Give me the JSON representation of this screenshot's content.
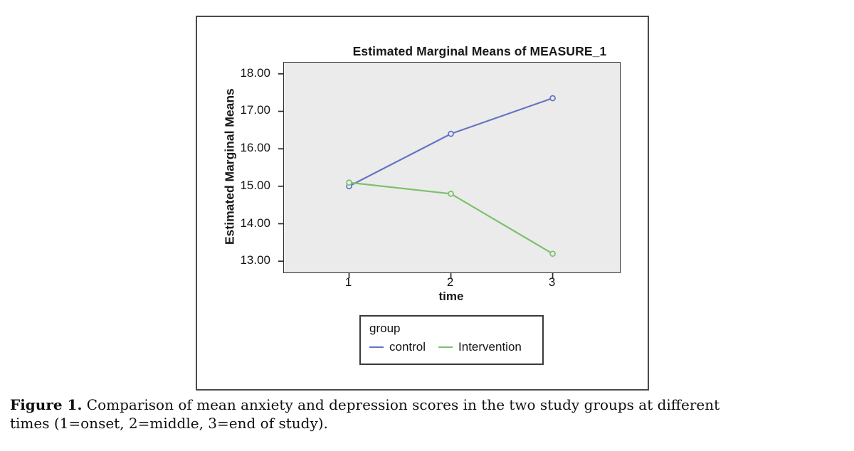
{
  "figure": {
    "caption_label": "Figure 1.",
    "caption_line1": "Comparison of mean anxiety and depression scores in the two study groups at different",
    "caption_line2": "times (1=onset, 2=middle, 3=end of study)."
  },
  "chart_data": {
    "type": "line",
    "title": "Estimated Marginal Means of MEASURE_1",
    "xlabel": "time",
    "ylabel": "Estimated Marginal Means",
    "x": [
      1,
      2,
      3
    ],
    "x_ticks": [
      {
        "value": 1,
        "label": "1"
      },
      {
        "value": 2,
        "label": "2"
      },
      {
        "value": 3,
        "label": "3"
      }
    ],
    "y_ticks": [
      {
        "value": 13,
        "label": "13.00"
      },
      {
        "value": 14,
        "label": "14.00"
      },
      {
        "value": 15,
        "label": "15.00"
      },
      {
        "value": 16,
        "label": "16.00"
      },
      {
        "value": 17,
        "label": "17.00"
      },
      {
        "value": 18,
        "label": "18.00"
      }
    ],
    "xlim": [
      0.36,
      3.66
    ],
    "ylim": [
      12.7,
      18.3
    ],
    "grid": false,
    "plot_background": "#EBEBEB",
    "marker_style": "open-circle",
    "legend": {
      "title": "group",
      "position": "below-plot"
    },
    "series": [
      {
        "name": "control",
        "color": "#6474C4",
        "values": [
          15.0,
          16.4,
          17.35
        ]
      },
      {
        "name": "Intervention",
        "color": "#7CC06C",
        "values": [
          15.1,
          14.8,
          13.2
        ]
      }
    ]
  }
}
